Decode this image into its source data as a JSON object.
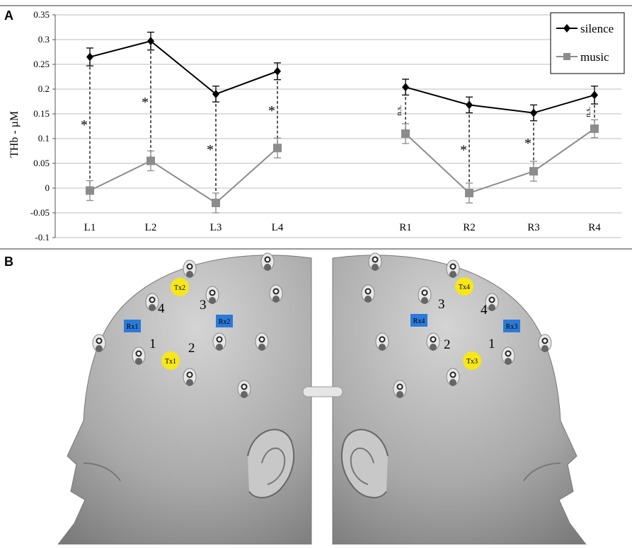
{
  "panel_a_label": "A",
  "panel_b_label": "B",
  "chart_data": {
    "type": "line",
    "ylabel": "THb - µM",
    "xlabel": "",
    "ylim": [
      -0.1,
      0.35
    ],
    "yticks": [
      "-0.1",
      "-0.05",
      "0",
      "0.05",
      "0.1",
      "0.15",
      "0.2",
      "0.25",
      "0.3",
      "0.35"
    ],
    "ytick_values": [
      -0.1,
      -0.05,
      0,
      0.05,
      0.1,
      0.15,
      0.2,
      0.25,
      0.3,
      0.35
    ],
    "grid": true,
    "legend_position": "top-right",
    "groups": [
      {
        "categories": [
          "L1",
          "L2",
          "L3",
          "L4"
        ]
      },
      {
        "categories": [
          "R1",
          "R2",
          "R3",
          "R4"
        ]
      }
    ],
    "series": [
      {
        "name": "silence",
        "color": "#000000",
        "marker": "diamond",
        "values": [
          0.265,
          0.297,
          0.19,
          0.236,
          0.204,
          0.168,
          0.152,
          0.188
        ],
        "errors": [
          0.018,
          0.018,
          0.016,
          0.017,
          0.016,
          0.016,
          0.016,
          0.018
        ]
      },
      {
        "name": "music",
        "color": "#8c8c8c",
        "marker": "square",
        "values": [
          -0.005,
          0.055,
          -0.03,
          0.081,
          0.11,
          -0.01,
          0.034,
          0.12
        ],
        "errors": [
          0.02,
          0.02,
          0.02,
          0.02,
          0.02,
          0.02,
          0.02,
          0.018
        ]
      }
    ],
    "annotations": [
      "*",
      "*",
      "*",
      "*",
      "n.s.",
      "*",
      "*",
      "n.s."
    ]
  },
  "head_diagram": {
    "left": {
      "transmitters": [
        "Tx2",
        "Tx1"
      ],
      "receivers": [
        "Rx1",
        "Rx2"
      ],
      "channels": [
        "1",
        "2",
        "3",
        "4"
      ]
    },
    "right": {
      "transmitters": [
        "Tx4",
        "Tx3"
      ],
      "receivers": [
        "Rx4",
        "Rx3"
      ],
      "channels": [
        "3",
        "4",
        "2",
        "1"
      ]
    },
    "colors": {
      "transmitter": "#f7e61a",
      "receiver": "#2a7ad8",
      "skin": "#a8a8a8"
    }
  }
}
